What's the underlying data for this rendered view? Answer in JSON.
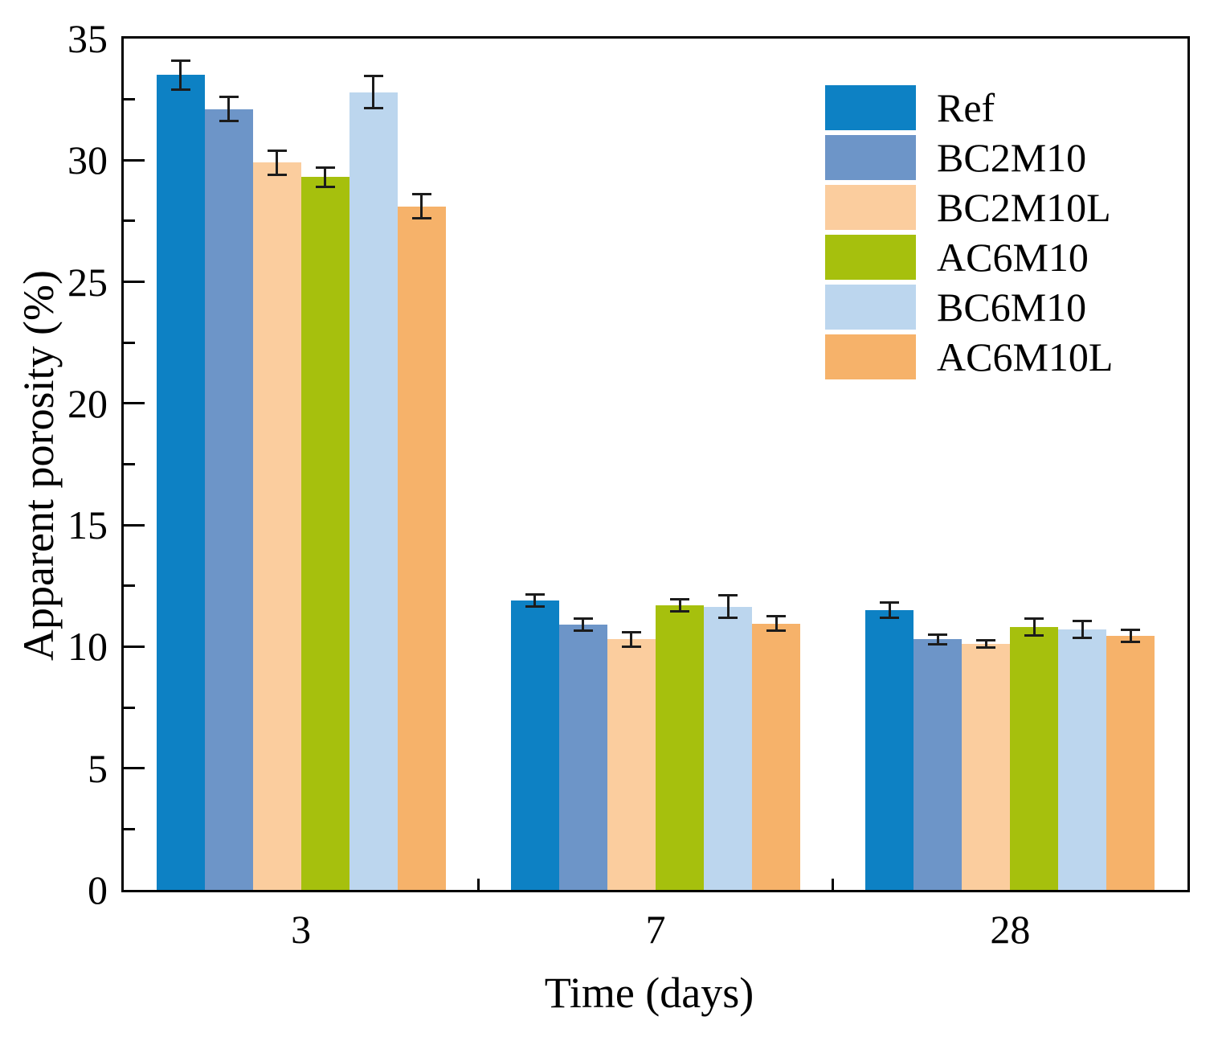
{
  "figure": {
    "ylabel": "Apparent porosity (%)",
    "xlabel": "Time (days)"
  },
  "chart_data": {
    "type": "bar",
    "title": "",
    "xlabel": "Time (days)",
    "ylabel": "Apparent porosity (%)",
    "categories": [
      "3",
      "7",
      "28"
    ],
    "ylim": [
      0,
      35
    ],
    "y_major_step": 5,
    "y_minor_step": 2.5,
    "y_tick_labels": [
      "0",
      "5",
      "10",
      "15",
      "20",
      "25",
      "30",
      "35"
    ],
    "grid": false,
    "legend_position": "upper-right-inside",
    "series": [
      {
        "name": "Ref",
        "color": "#0d81c4",
        "values": [
          33.5,
          11.9,
          11.5
        ],
        "errors": [
          0.6,
          0.25,
          0.3
        ]
      },
      {
        "name": "BC2M10",
        "color": "#6d95c8",
        "values": [
          32.1,
          10.9,
          10.3
        ],
        "errors": [
          0.5,
          0.25,
          0.2
        ]
      },
      {
        "name": "BC2M10L",
        "color": "#fbcd9e",
        "values": [
          29.9,
          10.3,
          10.1
        ],
        "errors": [
          0.5,
          0.3,
          0.15
        ]
      },
      {
        "name": "AC6M10",
        "color": "#a6c00d",
        "values": [
          29.3,
          11.7,
          10.8
        ],
        "errors": [
          0.4,
          0.25,
          0.35
        ]
      },
      {
        "name": "BC6M10",
        "color": "#bcd6ee",
        "values": [
          32.8,
          11.65,
          10.7
        ],
        "errors": [
          0.65,
          0.45,
          0.35
        ]
      },
      {
        "name": "AC6M10L",
        "color": "#f6b26a",
        "values": [
          28.1,
          10.95,
          10.45
        ],
        "errors": [
          0.5,
          0.3,
          0.25
        ]
      }
    ],
    "error_bar_color": "#1c1c1c",
    "axis_color": "#000000"
  }
}
